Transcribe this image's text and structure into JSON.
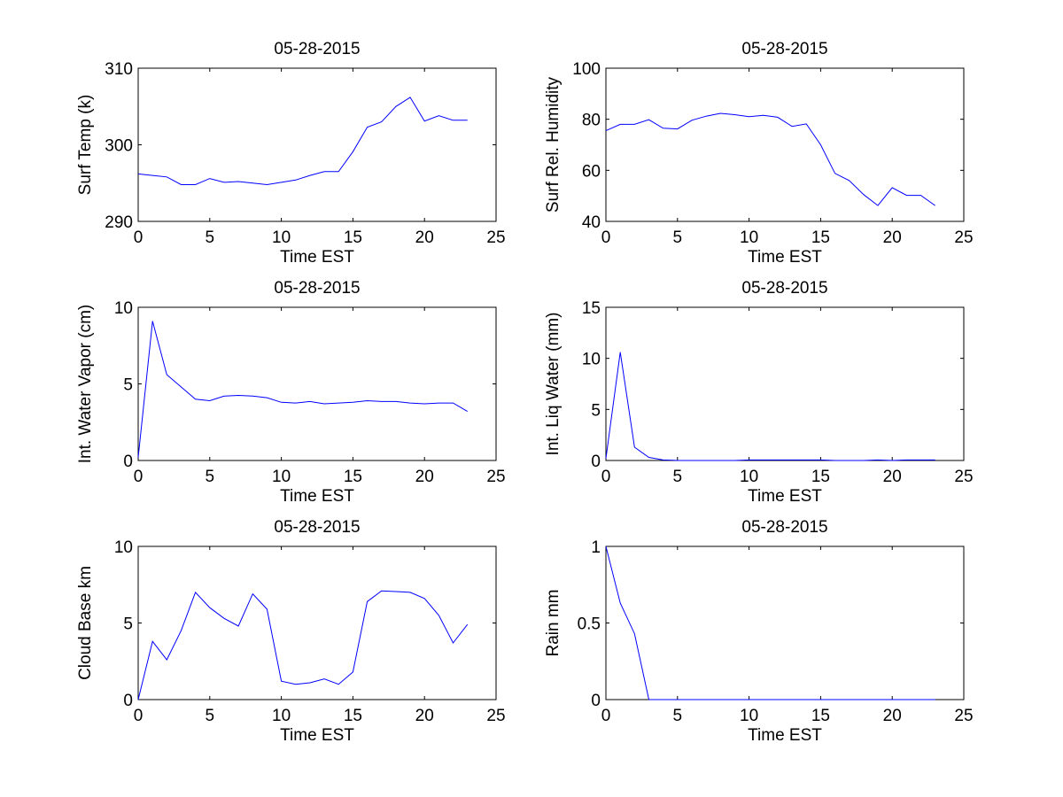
{
  "chart_data": [
    {
      "type": "line",
      "title": "05-28-2015",
      "xlabel": "Time EST",
      "ylabel": "Surf Temp (k)",
      "xlim": [
        0,
        25
      ],
      "ylim": [
        290,
        310
      ],
      "xticks": [
        "0",
        "5",
        "10",
        "15",
        "20",
        "25"
      ],
      "yticks": [
        "290",
        "300",
        "310"
      ],
      "grid": false,
      "x": [
        0,
        1,
        2,
        3,
        4,
        5,
        6,
        7,
        8,
        9,
        10,
        11,
        12,
        13,
        14,
        15,
        16,
        17,
        18,
        19,
        20,
        21,
        22,
        23
      ],
      "series": [
        {
          "values": [
            296.2,
            296.0,
            295.8,
            294.8,
            294.8,
            295.6,
            295.1,
            295.2,
            295.0,
            294.8,
            295.1,
            295.4,
            296.0,
            296.5,
            296.5,
            299.1,
            302.3,
            303.0,
            305.0,
            306.2,
            303.1,
            303.8,
            303.2,
            303.2
          ]
        }
      ]
    },
    {
      "type": "line",
      "title": "05-28-2015",
      "xlabel": "Time EST",
      "ylabel": "Surf Rel. Humidity",
      "xlim": [
        0,
        25
      ],
      "ylim": [
        40,
        100
      ],
      "xticks": [
        "0",
        "5",
        "10",
        "15",
        "20",
        "25"
      ],
      "yticks": [
        "40",
        "60",
        "80",
        "100"
      ],
      "grid": false,
      "x": [
        0,
        1,
        2,
        3,
        4,
        5,
        6,
        7,
        8,
        9,
        10,
        11,
        12,
        13,
        14,
        15,
        16,
        17,
        18,
        19,
        20,
        21,
        22,
        23
      ],
      "series": [
        {
          "values": [
            75.5,
            78.0,
            78.0,
            79.8,
            76.5,
            76.2,
            79.6,
            81.2,
            82.3,
            81.8,
            81.0,
            81.5,
            80.8,
            77.2,
            78.2,
            70.0,
            58.8,
            56.0,
            50.5,
            46.2,
            53.2,
            50.2,
            50.2,
            46.2
          ]
        }
      ]
    },
    {
      "type": "line",
      "title": "05-28-2015",
      "xlabel": "Time EST",
      "ylabel": "Int. Water Vapor (cm)",
      "xlim": [
        0,
        25
      ],
      "ylim": [
        0,
        10
      ],
      "xticks": [
        "0",
        "5",
        "10",
        "15",
        "20",
        "25"
      ],
      "yticks": [
        "0",
        "5",
        "10"
      ],
      "grid": false,
      "x": [
        0,
        1,
        2,
        3,
        4,
        5,
        6,
        7,
        8,
        9,
        10,
        11,
        12,
        13,
        14,
        15,
        16,
        17,
        18,
        19,
        20,
        21,
        22,
        23
      ],
      "series": [
        {
          "values": [
            0.2,
            9.1,
            5.6,
            4.8,
            4.0,
            3.9,
            4.2,
            4.25,
            4.2,
            4.1,
            3.8,
            3.75,
            3.85,
            3.7,
            3.75,
            3.8,
            3.9,
            3.85,
            3.85,
            3.75,
            3.7,
            3.75,
            3.75,
            3.2
          ]
        }
      ]
    },
    {
      "type": "line",
      "title": "05-28-2015",
      "xlabel": "Time EST",
      "ylabel": "Int. Liq Water (mm)",
      "xlim": [
        0,
        25
      ],
      "ylim": [
        0,
        15
      ],
      "xticks": [
        "0",
        "5",
        "10",
        "15",
        "20",
        "25"
      ],
      "yticks": [
        "0",
        "5",
        "10",
        "15"
      ],
      "grid": false,
      "x": [
        0,
        1,
        2,
        3,
        4,
        5,
        6,
        7,
        8,
        9,
        10,
        11,
        12,
        13,
        14,
        15,
        16,
        17,
        18,
        19,
        20,
        21,
        22,
        23
      ],
      "series": [
        {
          "values": [
            0.2,
            10.6,
            1.3,
            0.3,
            0.05,
            0,
            0,
            0,
            0,
            0,
            0.05,
            0.05,
            0.05,
            0.05,
            0.05,
            0.05,
            0,
            0,
            0,
            0.05,
            0,
            0.05,
            0.05,
            0.05
          ]
        }
      ]
    },
    {
      "type": "line",
      "title": "05-28-2015",
      "xlabel": "Time EST",
      "ylabel": "Cloud Base km",
      "xlim": [
        0,
        25
      ],
      "ylim": [
        0,
        10
      ],
      "xticks": [
        "0",
        "5",
        "10",
        "15",
        "20",
        "25"
      ],
      "yticks": [
        "0",
        "5",
        "10"
      ],
      "grid": false,
      "x": [
        0,
        1,
        2,
        3,
        4,
        5,
        6,
        7,
        8,
        9,
        10,
        11,
        12,
        13,
        14,
        15,
        16,
        17,
        18,
        19,
        20,
        21,
        22,
        23
      ],
      "series": [
        {
          "values": [
            0,
            3.8,
            2.6,
            4.5,
            7.0,
            6.0,
            5.3,
            4.8,
            6.9,
            5.9,
            1.2,
            1.0,
            1.1,
            1.35,
            1.0,
            1.8,
            6.4,
            7.1,
            7.05,
            7.0,
            6.6,
            5.5,
            3.7,
            4.9
          ]
        }
      ]
    },
    {
      "type": "line",
      "title": "05-28-2015",
      "xlabel": "Time EST",
      "ylabel": "Rain mm",
      "xlim": [
        0,
        25
      ],
      "ylim": [
        0,
        1
      ],
      "xticks": [
        "0",
        "5",
        "10",
        "15",
        "20",
        "25"
      ],
      "yticks": [
        "0",
        "0.5",
        "1"
      ],
      "grid": false,
      "x": [
        0,
        1,
        2,
        3,
        4,
        5,
        6,
        7,
        8,
        9,
        10,
        11,
        12,
        13,
        14,
        15,
        16,
        17,
        18,
        19,
        20,
        21,
        22,
        23
      ],
      "series": [
        {
          "values": [
            1.0,
            0.63,
            0.43,
            0,
            0,
            0,
            0,
            0,
            0,
            0,
            0,
            0,
            0,
            0,
            0,
            0,
            0,
            0,
            0,
            0,
            0,
            0,
            0,
            0
          ]
        }
      ]
    }
  ],
  "colors": {
    "line": "#0000ff",
    "axes": "#000000",
    "background": "#ffffff"
  }
}
